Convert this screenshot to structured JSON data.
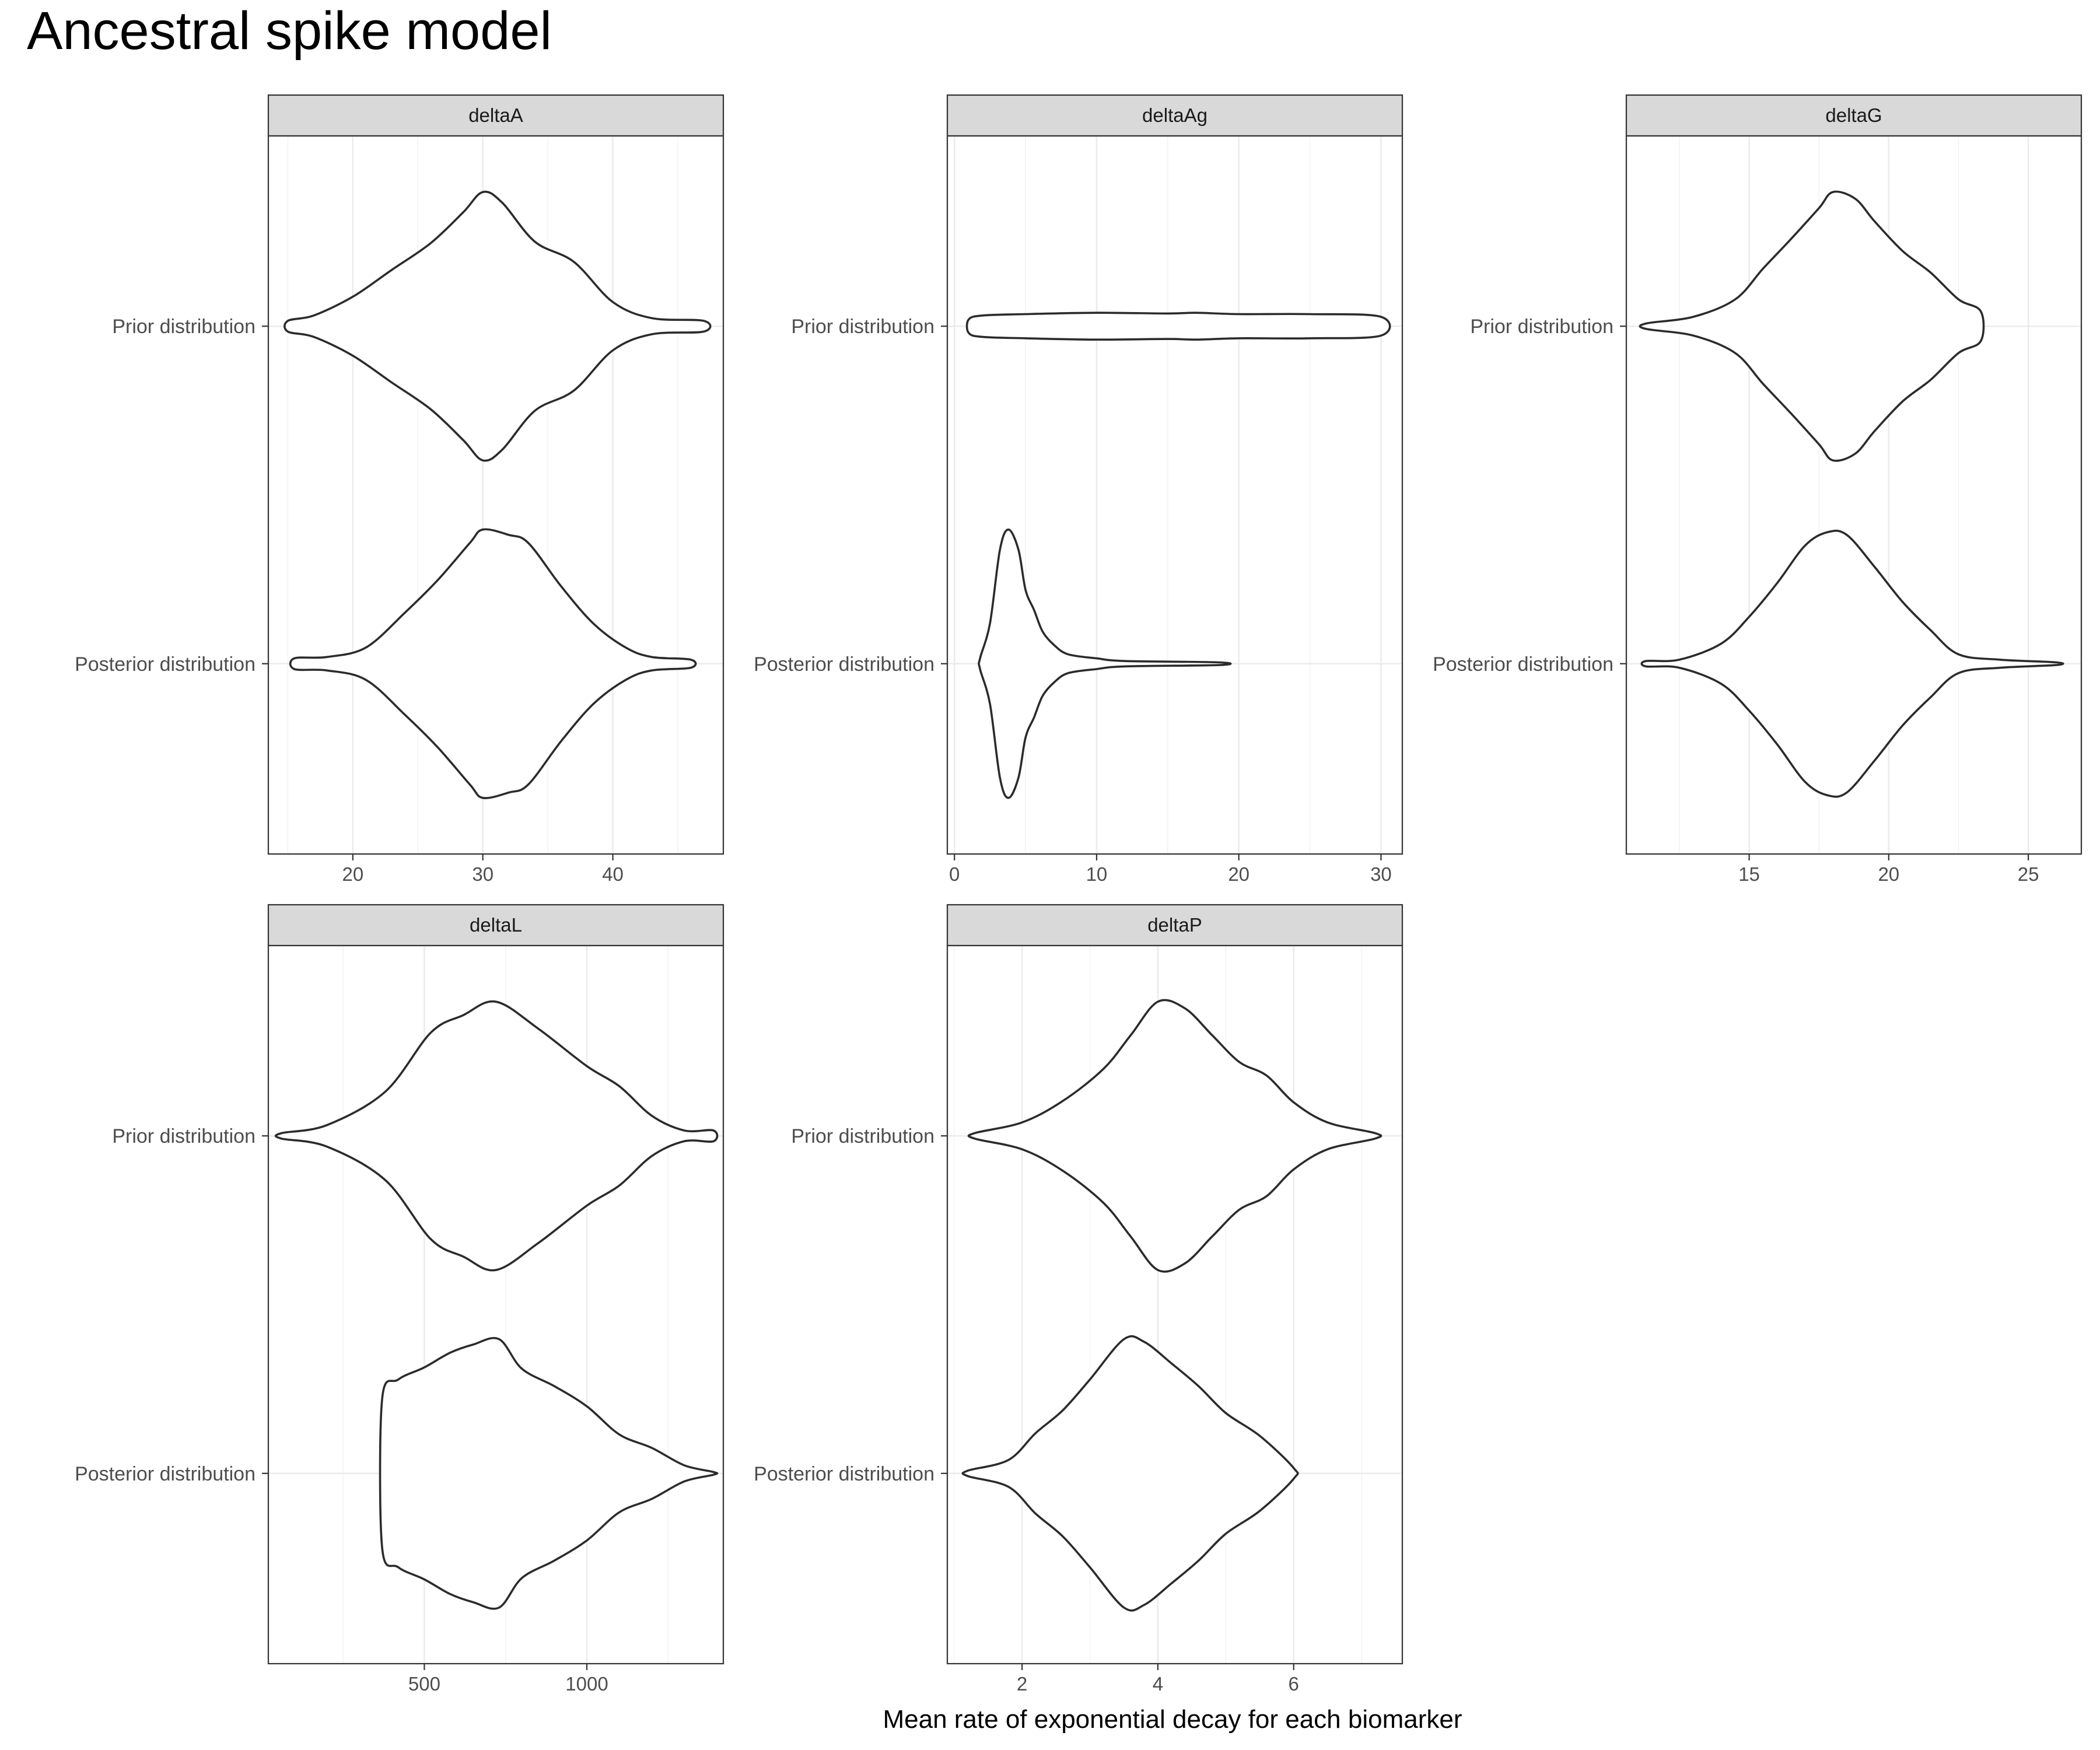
{
  "chart_data": {
    "type": "violin",
    "title": "Ancestral spike model",
    "xlabel": "Mean rate of exponential decay for each biomarker",
    "ylabel": "",
    "categories": [
      "Prior distribution",
      "Posterior distribution"
    ],
    "panels": [
      {
        "name": "deltaA",
        "xlim": [
          13.5,
          48.5
        ],
        "xticks": [
          20,
          30,
          40
        ],
        "series": [
          {
            "name": "Prior distribution",
            "profile": [
              [
                15.0,
                0.04
              ],
              [
                17.0,
                0.08
              ],
              [
                20.0,
                0.22
              ],
              [
                23.0,
                0.42
              ],
              [
                26.0,
                0.62
              ],
              [
                28.5,
                0.85
              ],
              [
                30.0,
                1.0
              ],
              [
                31.5,
                0.92
              ],
              [
                34.0,
                0.63
              ],
              [
                37.0,
                0.48
              ],
              [
                40.0,
                0.18
              ],
              [
                43.0,
                0.06
              ],
              [
                47.0,
                0.04
              ]
            ]
          },
          {
            "name": "Posterior distribution",
            "profile": [
              [
                15.5,
                0.04
              ],
              [
                18.0,
                0.05
              ],
              [
                21.0,
                0.12
              ],
              [
                24.0,
                0.38
              ],
              [
                26.5,
                0.62
              ],
              [
                29.0,
                0.9
              ],
              [
                30.0,
                1.0
              ],
              [
                32.0,
                0.96
              ],
              [
                33.5,
                0.9
              ],
              [
                36.0,
                0.58
              ],
              [
                38.5,
                0.3
              ],
              [
                41.0,
                0.12
              ],
              [
                43.0,
                0.05
              ],
              [
                46.0,
                0.03
              ]
            ]
          }
        ]
      },
      {
        "name": "deltaAg",
        "xlim": [
          -0.5,
          31.5
        ],
        "xticks": [
          0,
          10,
          20,
          30
        ],
        "series": [
          {
            "name": "Prior distribution",
            "profile": [
              [
                1.0,
                0.05
              ],
              [
                2.0,
                0.08
              ],
              [
                5.0,
                0.09
              ],
              [
                10.0,
                0.1
              ],
              [
                15.0,
                0.095
              ],
              [
                17.0,
                0.1
              ],
              [
                20.0,
                0.09
              ],
              [
                25.0,
                0.09
              ],
              [
                30.0,
                0.07
              ]
            ]
          },
          {
            "name": "Posterior distribution",
            "profile": [
              [
                1.8,
                0.04
              ],
              [
                2.5,
                0.3
              ],
              [
                3.2,
                0.85
              ],
              [
                3.8,
                1.0
              ],
              [
                4.5,
                0.85
              ],
              [
                5.0,
                0.55
              ],
              [
                5.6,
                0.4
              ],
              [
                6.2,
                0.24
              ],
              [
                7.0,
                0.14
              ],
              [
                8.0,
                0.07
              ],
              [
                10.0,
                0.04
              ],
              [
                12.0,
                0.02
              ],
              [
                18.6,
                0.01
              ]
            ]
          }
        ]
      },
      {
        "name": "deltaG",
        "xlim": [
          10.6,
          26.9
        ],
        "xticks": [
          15,
          20,
          25
        ],
        "series": [
          {
            "name": "Prior distribution",
            "profile": [
              [
                11.3,
                0.02
              ],
              [
                13.0,
                0.07
              ],
              [
                14.5,
                0.2
              ],
              [
                15.5,
                0.43
              ],
              [
                16.5,
                0.65
              ],
              [
                17.5,
                0.88
              ],
              [
                18.0,
                1.0
              ],
              [
                18.8,
                0.95
              ],
              [
                19.5,
                0.78
              ],
              [
                20.5,
                0.56
              ],
              [
                21.5,
                0.4
              ],
              [
                22.5,
                0.2
              ],
              [
                23.3,
                0.11
              ]
            ]
          },
          {
            "name": "Posterior distribution",
            "profile": [
              [
                11.3,
                0.02
              ],
              [
                12.5,
                0.03
              ],
              [
                14.0,
                0.15
              ],
              [
                15.0,
                0.35
              ],
              [
                16.0,
                0.6
              ],
              [
                17.0,
                0.88
              ],
              [
                17.8,
                0.98
              ],
              [
                18.5,
                0.96
              ],
              [
                19.5,
                0.72
              ],
              [
                20.5,
                0.46
              ],
              [
                21.5,
                0.25
              ],
              [
                22.5,
                0.07
              ],
              [
                24.0,
                0.03
              ],
              [
                26.0,
                0.01
              ]
            ]
          }
        ]
      },
      {
        "name": "deltaL",
        "xlim": [
          20,
          1420
        ],
        "xticks": [
          500,
          1000
        ],
        "series": [
          {
            "name": "Prior distribution",
            "profile": [
              [
                60,
                0.02
              ],
              [
                200,
                0.08
              ],
              [
                380,
                0.33
              ],
              [
                520,
                0.77
              ],
              [
                620,
                0.9
              ],
              [
                720,
                1.0
              ],
              [
                850,
                0.8
              ],
              [
                1000,
                0.52
              ],
              [
                1100,
                0.37
              ],
              [
                1200,
                0.15
              ],
              [
                1300,
                0.04
              ],
              [
                1390,
                0.04
              ]
            ]
          },
          {
            "name": "Posterior distribution",
            "profile": [
              [
                370,
                0.55
              ],
              [
                420,
                0.7
              ],
              [
                500,
                0.79
              ],
              [
                580,
                0.9
              ],
              [
                650,
                0.96
              ],
              [
                730,
                1.0
              ],
              [
                800,
                0.78
              ],
              [
                900,
                0.65
              ],
              [
                1000,
                0.5
              ],
              [
                1100,
                0.29
              ],
              [
                1200,
                0.19
              ],
              [
                1300,
                0.06
              ],
              [
                1390,
                0.01
              ]
            ]
          }
        ]
      },
      {
        "name": "deltaP",
        "xlim": [
          0.9,
          7.6
        ],
        "xticks": [
          2,
          4,
          6
        ],
        "series": [
          {
            "name": "Prior distribution",
            "profile": [
              [
                1.3,
                0.02
              ],
              [
                2.0,
                0.1
              ],
              [
                2.6,
                0.26
              ],
              [
                3.2,
                0.5
              ],
              [
                3.6,
                0.75
              ],
              [
                4.0,
                1.0
              ],
              [
                4.4,
                0.95
              ],
              [
                4.8,
                0.75
              ],
              [
                5.2,
                0.55
              ],
              [
                5.6,
                0.45
              ],
              [
                6.0,
                0.25
              ],
              [
                6.5,
                0.1
              ],
              [
                7.2,
                0.02
              ]
            ]
          },
          {
            "name": "Posterior distribution",
            "profile": [
              [
                1.2,
                0.02
              ],
              [
                1.8,
                0.1
              ],
              [
                2.2,
                0.3
              ],
              [
                2.6,
                0.47
              ],
              [
                3.0,
                0.7
              ],
              [
                3.5,
                1.0
              ],
              [
                3.8,
                0.98
              ],
              [
                4.2,
                0.82
              ],
              [
                4.6,
                0.65
              ],
              [
                5.0,
                0.45
              ],
              [
                5.5,
                0.28
              ],
              [
                6.0,
                0.04
              ]
            ]
          }
        ]
      }
    ],
    "grid": true,
    "legend": "none",
    "colors": {
      "outline": "#2b2b2b",
      "strip": "#d9d9d9",
      "grid": "#ebebeb",
      "panel_border": "#333333",
      "tick_text": "#4d4d4d",
      "text": "#000000"
    }
  }
}
